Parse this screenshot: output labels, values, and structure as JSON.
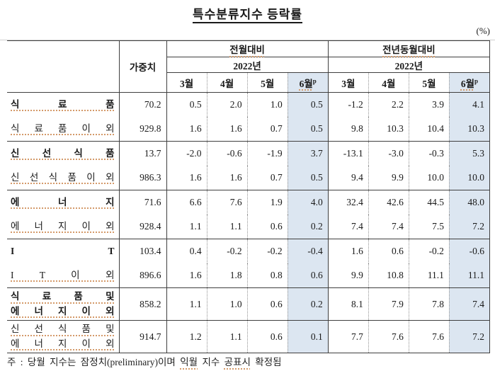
{
  "title": "특수분류지수 등락률",
  "unit_label": "(%)",
  "table": {
    "weight_header": "가중치",
    "group_headers": [
      "전월대비",
      "전년동월대비"
    ],
    "year_header": "2022년",
    "months": [
      "3월",
      "4월",
      "5월",
      "6월"
    ],
    "prelim_mark": "p",
    "rows": [
      {
        "label": "식 료 품",
        "bold": true,
        "squiggle": true,
        "group_start": true,
        "tall": false,
        "weight": "70.2",
        "prev": [
          "0.5",
          "2.0",
          "1.0",
          "0.5"
        ],
        "yoy": [
          "-1.2",
          "2.2",
          "3.9",
          "4.1"
        ]
      },
      {
        "label": "식 료 품 이 외",
        "bold": false,
        "squiggle": true,
        "group_start": false,
        "tall": false,
        "weight": "929.8",
        "prev": [
          "1.6",
          "1.6",
          "0.7",
          "0.5"
        ],
        "yoy": [
          "9.8",
          "10.3",
          "10.4",
          "10.3"
        ]
      },
      {
        "label": "신 선 식 품",
        "bold": true,
        "squiggle": true,
        "group_start": true,
        "tall": false,
        "weight": "13.7",
        "prev": [
          "-2.0",
          "-0.6",
          "-1.9",
          "3.7"
        ],
        "yoy": [
          "-13.1",
          "-3.0",
          "-0.3",
          "5.3"
        ]
      },
      {
        "label": "신 선 식 품 이 외",
        "bold": false,
        "squiggle": true,
        "group_start": false,
        "tall": false,
        "weight": "986.3",
        "prev": [
          "1.6",
          "1.6",
          "0.7",
          "0.5"
        ],
        "yoy": [
          "9.4",
          "9.9",
          "10.0",
          "10.0"
        ]
      },
      {
        "label": "에 너 지",
        "bold": true,
        "squiggle": true,
        "group_start": true,
        "tall": false,
        "weight": "71.6",
        "prev": [
          "6.6",
          "7.6",
          "1.9",
          "4.0"
        ],
        "yoy": [
          "32.4",
          "42.6",
          "44.5",
          "48.0"
        ]
      },
      {
        "label": "에 너 지 이 외",
        "bold": false,
        "squiggle": true,
        "group_start": false,
        "tall": false,
        "weight": "928.4",
        "prev": [
          "1.1",
          "1.1",
          "0.6",
          "0.2"
        ],
        "yoy": [
          "7.4",
          "7.4",
          "7.5",
          "7.2"
        ]
      },
      {
        "label": "I T",
        "bold": true,
        "squiggle": false,
        "group_start": true,
        "tall": false,
        "weight": "103.4",
        "prev": [
          "0.4",
          "-0.2",
          "-0.2",
          "-0.4"
        ],
        "yoy": [
          "1.6",
          "0.6",
          "-0.2",
          "-0.6"
        ]
      },
      {
        "label": "I T 이 외",
        "bold": false,
        "squiggle": true,
        "group_start": false,
        "tall": false,
        "weight": "896.6",
        "prev": [
          "1.6",
          "1.8",
          "0.8",
          "0.6"
        ],
        "yoy": [
          "9.9",
          "10.8",
          "11.1",
          "11.1"
        ]
      },
      {
        "label": "식 료 품 및\n에 너 지 이 외",
        "bold": true,
        "squiggle": true,
        "group_start": true,
        "tall": true,
        "weight": "858.2",
        "prev": [
          "1.1",
          "1.0",
          "0.6",
          "0.2"
        ],
        "yoy": [
          "8.1",
          "7.9",
          "7.8",
          "7.4"
        ]
      },
      {
        "label": "신 선 식 품 및\n에 너 지 이 외",
        "bold": false,
        "squiggle": true,
        "group_start": true,
        "tall": true,
        "weight": "914.7",
        "prev": [
          "1.2",
          "1.1",
          "0.6",
          "0.1"
        ],
        "yoy": [
          "7.7",
          "7.6",
          "7.6",
          "7.2"
        ]
      }
    ]
  },
  "footnote": {
    "parts": [
      {
        "text": "주 : 당월 지수는 잠정치(preliminary)이며 ",
        "squiggle": false
      },
      {
        "text": "익월",
        "squiggle": true
      },
      {
        "text": " 지수 ",
        "squiggle": false
      },
      {
        "text": "공표시",
        "squiggle": true
      },
      {
        "text": " 확정됨",
        "squiggle": false
      }
    ]
  },
  "colors": {
    "highlight_blue": "#dce6f1",
    "border_dark": "#3f3f3f",
    "dotted_separator": "#909090",
    "squiggle_orange": "#d49a6a"
  }
}
